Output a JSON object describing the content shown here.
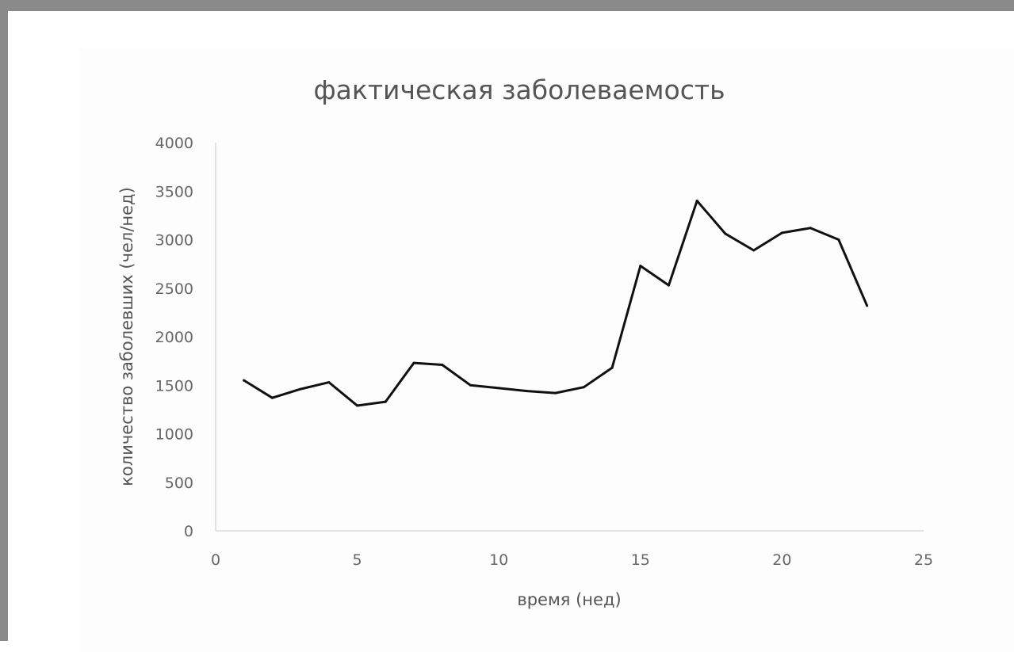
{
  "chart_data": {
    "type": "line",
    "title": "фактическая заболеваемость",
    "xlabel": "время (нед)",
    "ylabel": "количество заболевших (чел/нед)",
    "xlim": [
      0,
      25
    ],
    "ylim": [
      0,
      4000
    ],
    "x_ticks": [
      "0",
      "5",
      "10",
      "15",
      "20",
      "25"
    ],
    "y_ticks": [
      "0",
      "500",
      "1000",
      "1500",
      "2000",
      "2500",
      "3000",
      "3500",
      "4000"
    ],
    "grid": false,
    "legend": "none",
    "series": [
      {
        "color": "#111111",
        "x": [
          1,
          2,
          3,
          4,
          5,
          6,
          7,
          8,
          9,
          10,
          11,
          12,
          13,
          14,
          15,
          16,
          17,
          18,
          19,
          20,
          21,
          22,
          23
        ],
        "y": [
          1550,
          1370,
          1460,
          1530,
          1290,
          1330,
          1730,
          1710,
          1500,
          1470,
          1440,
          1420,
          1480,
          1680,
          2730,
          2530,
          3400,
          3060,
          2890,
          3070,
          3120,
          3000,
          2320
        ]
      }
    ]
  }
}
